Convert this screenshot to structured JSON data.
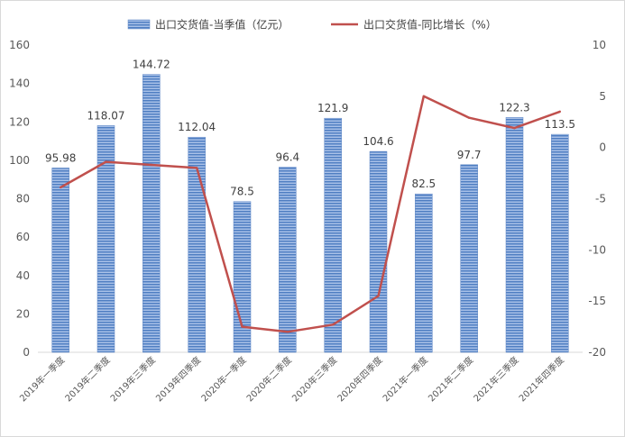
{
  "chart_data": {
    "type": "bar",
    "categories": [
      "2019年一季度",
      "2019年二季度",
      "2019年三季度",
      "2019年四季度",
      "2020年一季度",
      "2020年二季度",
      "2020年三季度",
      "2020年四季度",
      "2021年一季度",
      "2021年二季度",
      "2021年三季度",
      "2021年四季度"
    ],
    "series": [
      {
        "name": "出口交货值-当季值（亿元）",
        "type": "bar",
        "axis": "left",
        "color": "#5B84C4",
        "values": [
          95.98,
          118.07,
          144.72,
          112.04,
          78.5,
          96.4,
          121.9,
          104.6,
          82.5,
          97.7,
          122.3,
          113.5
        ],
        "labels": [
          "95.98",
          "118.07",
          "144.72",
          "112.04",
          "78.5",
          "96.4",
          "121.9",
          "104.6",
          "82.5",
          "97.7",
          "122.3",
          "113.5"
        ]
      },
      {
        "name": "出口交货值-同比增长（%）",
        "type": "line",
        "axis": "right",
        "color": "#C0504D",
        "values": [
          -3.9,
          -1.4,
          -1.7,
          -2.0,
          -17.5,
          -18.0,
          -17.3,
          -14.5,
          5.0,
          2.9,
          1.9,
          3.5
        ]
      }
    ],
    "y_left": {
      "ylim": [
        0,
        160
      ],
      "ticks": [
        "0",
        "20",
        "40",
        "60",
        "80",
        "100",
        "120",
        "140",
        "160"
      ]
    },
    "y_right": {
      "ylim": [
        -20,
        10
      ],
      "ticks": [
        "-20",
        "-15",
        "-10",
        "-5",
        "0",
        "5",
        "10"
      ]
    },
    "legend_position": "top",
    "grid": false
  }
}
